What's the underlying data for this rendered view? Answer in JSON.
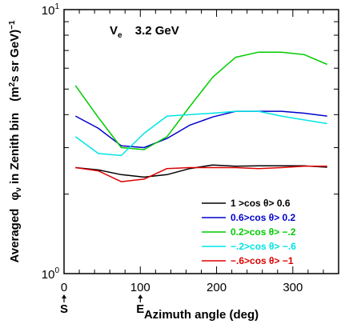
{
  "chart_data": {
    "type": "line",
    "title": "",
    "annotation": {
      "particle": "V",
      "subscript": "e",
      "energy": "3.2 GeV"
    },
    "xlabel": "Azimuth angle (deg)",
    "ylabel": "Averaged",
    "ylabel_phi": "φ",
    "ylabel_phi_sub": "ν",
    "ylabel_rest": "in Zenith bin",
    "ylabel_units_open": "(m",
    "ylabel_units_sup": "2",
    "ylabel_units_rest": "s sr GeV)",
    "ylabel_units_power": "−1",
    "xlim": [
      0,
      360
    ],
    "ylim": [
      1,
      10
    ],
    "yscale": "log",
    "x_ticks": [
      0,
      100,
      200,
      300
    ],
    "x_tick_labels": [
      "0",
      "100",
      "200",
      "300"
    ],
    "y_tick_labels": [
      {
        "base": "10",
        "exp": "0"
      },
      {
        "base": "10",
        "exp": "1"
      }
    ],
    "direction_markers": [
      {
        "x": 0,
        "label": "S"
      },
      {
        "x": 100,
        "label": "E"
      }
    ],
    "legend_position": "bottom-right",
    "series": [
      {
        "name": "1 >cos  θ> 0.6",
        "color": "#000000",
        "x": [
          15,
          45,
          75,
          105,
          135,
          165,
          195,
          225,
          255,
          285,
          315,
          345
        ],
        "y": [
          2.52,
          2.47,
          2.37,
          2.32,
          2.37,
          2.5,
          2.58,
          2.55,
          2.56,
          2.56,
          2.56,
          2.53
        ]
      },
      {
        "name": "0.6>cos  θ> 0.2",
        "color": "#0000cc",
        "x": [
          15,
          45,
          75,
          105,
          135,
          165,
          195,
          225,
          255,
          285,
          315,
          345
        ],
        "y": [
          3.95,
          3.55,
          3.05,
          3.0,
          3.25,
          3.65,
          3.92,
          4.12,
          4.12,
          4.12,
          4.05,
          3.95
        ]
      },
      {
        "name": "0.2>cos  θ> −.2",
        "color": "#00cc00",
        "x": [
          15,
          45,
          75,
          105,
          135,
          165,
          195,
          225,
          255,
          285,
          315,
          345
        ],
        "y": [
          5.15,
          3.9,
          3.0,
          2.95,
          3.3,
          4.3,
          5.55,
          6.6,
          6.9,
          6.9,
          6.75,
          6.2
        ]
      },
      {
        "name": "−.2>cos  θ> −.6",
        "color": "#00e5e5",
        "x": [
          15,
          45,
          75,
          105,
          135,
          165,
          195,
          225,
          255,
          285,
          315,
          345
        ],
        "y": [
          3.3,
          2.85,
          2.8,
          3.4,
          3.95,
          4.0,
          4.05,
          4.12,
          4.12,
          3.95,
          3.82,
          3.7
        ]
      },
      {
        "name": "−.6>cos  θ> −1",
        "color": "#dd0000",
        "x": [
          15,
          45,
          75,
          105,
          135,
          165,
          195,
          225,
          255,
          285,
          315,
          345
        ],
        "y": [
          2.52,
          2.45,
          2.23,
          2.28,
          2.5,
          2.52,
          2.52,
          2.52,
          2.5,
          2.52,
          2.55,
          2.55
        ]
      }
    ]
  }
}
